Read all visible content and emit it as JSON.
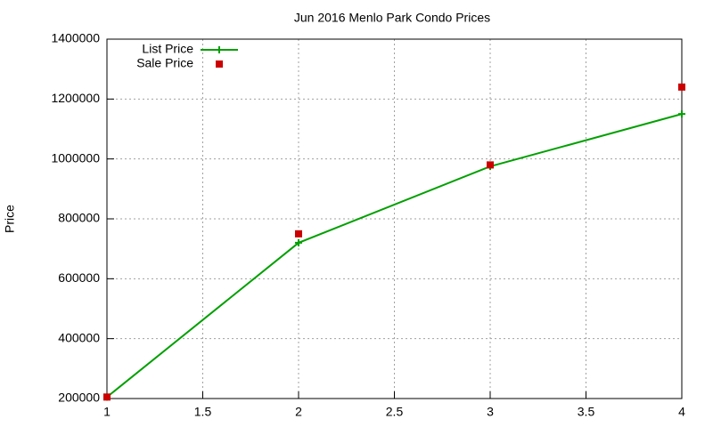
{
  "chart_data": {
    "type": "line",
    "title": "Jun 2016 Menlo Park Condo Prices",
    "y_label": "Price",
    "x": [
      1,
      2,
      3,
      4
    ],
    "series": [
      {
        "name": "List Price",
        "color": "#00a000",
        "line": true,
        "marker": "plus",
        "values": [
          205000,
          720000,
          975000,
          1150000
        ]
      },
      {
        "name": "Sale Price",
        "color": "#cc0000",
        "line": false,
        "marker": "square",
        "values": [
          205000,
          750000,
          980000,
          1240000
        ]
      }
    ],
    "xlim": [
      1,
      4
    ],
    "xticks": [
      1,
      1.5,
      2,
      2.5,
      3,
      3.5,
      4
    ],
    "ylim": [
      200000,
      1400000
    ],
    "yticks": [
      200000,
      400000,
      600000,
      800000,
      1000000,
      1200000,
      1400000
    ],
    "grid": true,
    "legend": "top-left"
  }
}
